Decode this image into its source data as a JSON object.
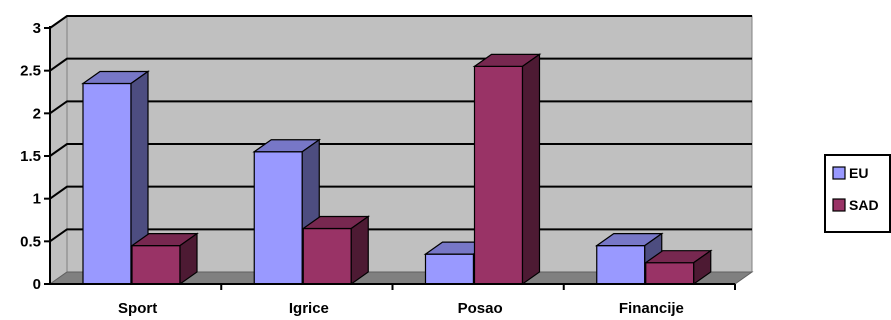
{
  "chart_data": {
    "type": "bar",
    "categories": [
      "Sport",
      "Igrice",
      "Posao",
      "Financije"
    ],
    "series": [
      {
        "name": "EU",
        "values": [
          2.35,
          1.55,
          0.35,
          0.45
        ]
      },
      {
        "name": "SAD",
        "values": [
          0.45,
          0.65,
          2.55,
          0.25
        ]
      }
    ],
    "ylim": [
      0,
      3
    ],
    "yticks": [
      "0",
      "0.5",
      "1",
      "1.5",
      "2",
      "2.5",
      "3"
    ],
    "grid": true,
    "legend_position": "right",
    "colors": {
      "EU": "#9999ff",
      "SAD": "#993366",
      "plot_back": "#c0c0c0",
      "floor": "#808080"
    }
  }
}
